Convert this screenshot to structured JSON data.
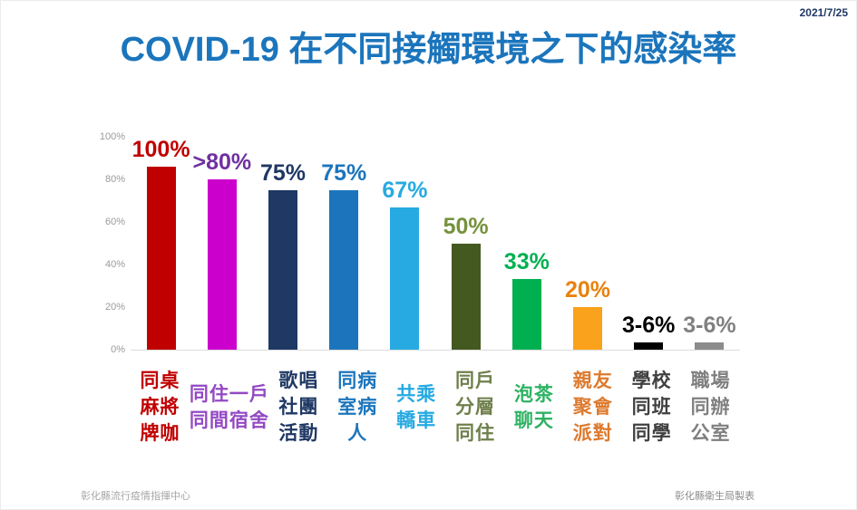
{
  "header": {
    "date": "2021/7/25",
    "title": "COVID-19 在不同接觸環境之下的感染率",
    "title_color": "#1b75bc",
    "date_color": "#1f3864"
  },
  "chart_data": {
    "type": "bar",
    "title": "COVID-19 在不同接觸環境之下的感染率",
    "xlabel": "",
    "ylabel": "",
    "ylim": [
      0,
      100
    ],
    "grid": false,
    "legend_position": "none",
    "y_ticks": [
      "100%",
      "80%",
      "60%",
      "40%",
      "20%",
      "0%"
    ],
    "categories": [
      "同桌麻將牌咖",
      "同住一戶同間宿舍",
      "歌唱社團活動",
      "同病室病人",
      "共乘轎車",
      "同戶分層同住",
      "泡茶聊天",
      "親友聚會派對",
      "學校同班同學",
      "職場同辦公室"
    ],
    "bars": [
      {
        "value_label": "100%",
        "value": 100,
        "bar_color": "#c00000",
        "label_color": "#c00000",
        "category_lines": [
          "同桌",
          "麻將",
          "牌咖"
        ],
        "category_color": "#c00000"
      },
      {
        "value_label": ">80%",
        "value": 80,
        "bar_color": "#cc00cc",
        "label_color": "#7030a0",
        "category_lines": [
          "同住一戶",
          "同間宿舍"
        ],
        "category_color": "#9349c3"
      },
      {
        "value_label": "75%",
        "value": 75,
        "bar_color": "#1f3864",
        "label_color": "#1f3864",
        "category_lines": [
          "歌唱",
          "社團",
          "活動"
        ],
        "category_color": "#1f3864"
      },
      {
        "value_label": "75%",
        "value": 75,
        "bar_color": "#1c75bc",
        "label_color": "#1c75bc",
        "category_lines": [
          "同病",
          "室病",
          "人"
        ],
        "category_color": "#1c75bc"
      },
      {
        "value_label": "67%",
        "value": 67,
        "bar_color": "#27aae1",
        "label_color": "#27aae1",
        "category_lines": [
          "共乘",
          "轎車"
        ],
        "category_color": "#27aae1"
      },
      {
        "value_label": "50%",
        "value": 50,
        "bar_color": "#44591f",
        "label_color": "#76923c",
        "category_lines": [
          "同戶",
          "分層",
          "同住"
        ],
        "category_color": "#6f7f4b"
      },
      {
        "value_label": "33%",
        "value": 33,
        "bar_color": "#00b050",
        "label_color": "#00b050",
        "category_lines": [
          "泡茶",
          "聊天"
        ],
        "category_color": "#2fb264"
      },
      {
        "value_label": "20%",
        "value": 20,
        "bar_color": "#faa21b",
        "label_color": "#e8820e",
        "category_lines": [
          "親友",
          "聚會",
          "派對"
        ],
        "category_color": "#dd7a2e"
      },
      {
        "value_label": "3-6%",
        "value": 3.5,
        "bar_color": "#000000",
        "label_color": "#000000",
        "category_lines": [
          "學校",
          "同班",
          "同學"
        ],
        "category_color": "#404040"
      },
      {
        "value_label": "3-6%",
        "value": 3.5,
        "bar_color": "#8c8c8c",
        "label_color": "#808080",
        "category_lines": [
          "職場",
          "同辦",
          "公室"
        ],
        "category_color": "#7f7f7f"
      }
    ]
  },
  "footer": {
    "left": "彰化縣流行疫情指揮中心",
    "right": "彰化縣衛生局製表"
  }
}
